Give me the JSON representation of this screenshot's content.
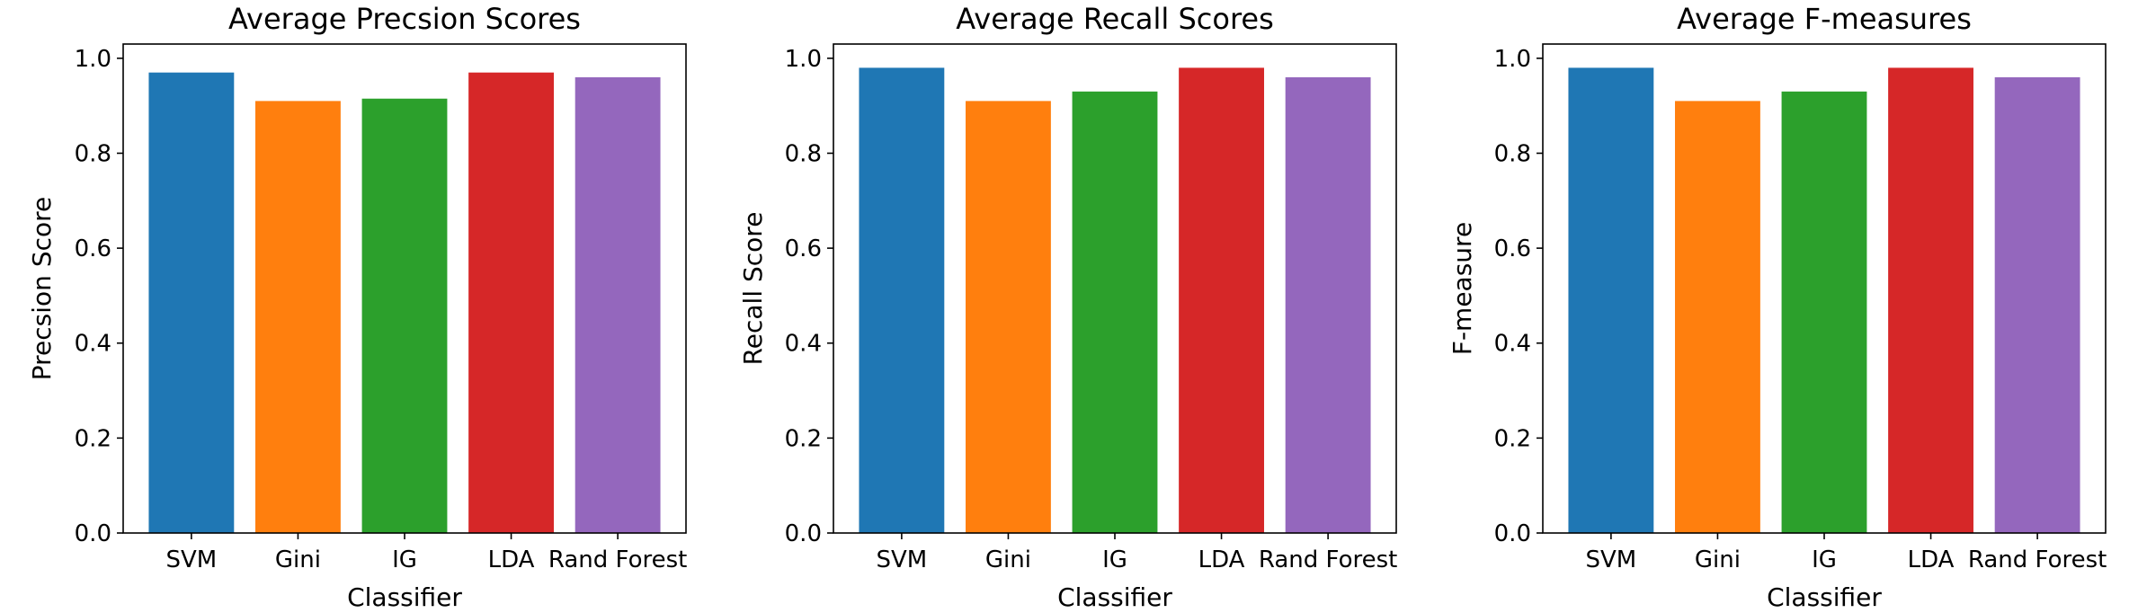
{
  "chart_data": [
    {
      "type": "bar",
      "title": "Average Precsion Scores",
      "xlabel": "Classifier",
      "ylabel": "Precsion Score",
      "categories": [
        "SVM",
        "Gini",
        "IG",
        "LDA",
        "Rand Forest"
      ],
      "values": [
        0.97,
        0.91,
        0.915,
        0.97,
        0.96
      ],
      "ylim": [
        0,
        1.03
      ],
      "yticks": [
        "0.0",
        "0.2",
        "0.4",
        "0.6",
        "0.8",
        "1.0"
      ],
      "grid": false,
      "legend": "none"
    },
    {
      "type": "bar",
      "title": "Average Recall Scores",
      "xlabel": "Classifier",
      "ylabel": "Recall Score",
      "categories": [
        "SVM",
        "Gini",
        "IG",
        "LDA",
        "Rand Forest"
      ],
      "values": [
        0.98,
        0.91,
        0.93,
        0.98,
        0.96
      ],
      "ylim": [
        0,
        1.03
      ],
      "yticks": [
        "0.0",
        "0.2",
        "0.4",
        "0.6",
        "0.8",
        "1.0"
      ],
      "grid": false,
      "legend": "none"
    },
    {
      "type": "bar",
      "title": "Average F-measures",
      "xlabel": "Classifier",
      "ylabel": "F-measure",
      "categories": [
        "SVM",
        "Gini",
        "IG",
        "LDA",
        "Rand Forest"
      ],
      "values": [
        0.98,
        0.91,
        0.93,
        0.98,
        0.96
      ],
      "ylim": [
        0,
        1.03
      ],
      "yticks": [
        "0.0",
        "0.2",
        "0.4",
        "0.6",
        "0.8",
        "1.0"
      ],
      "grid": false,
      "legend": "none"
    }
  ],
  "colors": [
    "#1f77b4",
    "#ff7f0e",
    "#2ca02c",
    "#d62728",
    "#9467bd"
  ]
}
